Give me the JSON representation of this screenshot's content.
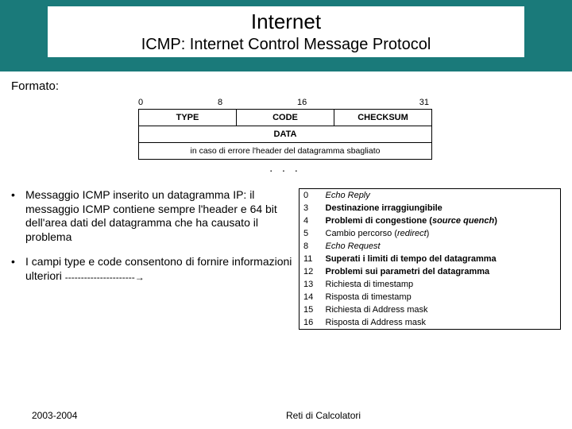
{
  "header": {
    "title": "Internet",
    "subtitle": "ICMP: Internet Control Message Protocol"
  },
  "formato_label": "Formato:",
  "diagram": {
    "bits": [
      "0",
      "8",
      "16",
      "31"
    ],
    "row1": [
      "TYPE",
      "CODE",
      "CHECKSUM"
    ],
    "row2": "DATA",
    "row3": "in caso di errore l'header del datagramma sbagliato",
    "dots": ". . ."
  },
  "bullets": [
    "Messaggio ICMP inserito un datagramma IP: il messaggio ICMP contiene sempre l'header e 64 bit dell'area dati del datagramma che ha causato il problema",
    "I campi type e code consentono di fornire informazioni ulteriori"
  ],
  "arrow_dashes": "----------------------→",
  "type_table": [
    {
      "code": "0",
      "desc": "Echo Reply",
      "italic": true
    },
    {
      "code": "3",
      "desc": "Destinazione irraggiungibile",
      "bold": true
    },
    {
      "code": "4",
      "desc_pre": "Problemi di congestione (",
      "desc_it": "source quench",
      "desc_post": ")",
      "bold": true
    },
    {
      "code": "5",
      "desc_pre": "Cambio percorso (",
      "desc_it": "redirect",
      "desc_post": ")"
    },
    {
      "code": "8",
      "desc": "Echo Request",
      "italic": true
    },
    {
      "code": "11",
      "desc": "Superati i limiti di tempo del datagramma",
      "bold": true
    },
    {
      "code": "12",
      "desc": "Problemi sui parametri del datagramma",
      "bold": true
    },
    {
      "code": "13",
      "desc": "Richiesta di timestamp"
    },
    {
      "code": "14",
      "desc": "Risposta di timestamp"
    },
    {
      "code": "15",
      "desc": "Richiesta di Address mask"
    },
    {
      "code": "16",
      "desc": "Risposta di Address mask"
    }
  ],
  "footer": {
    "left": "2003-2004",
    "right": "Reti di Calcolatori"
  }
}
